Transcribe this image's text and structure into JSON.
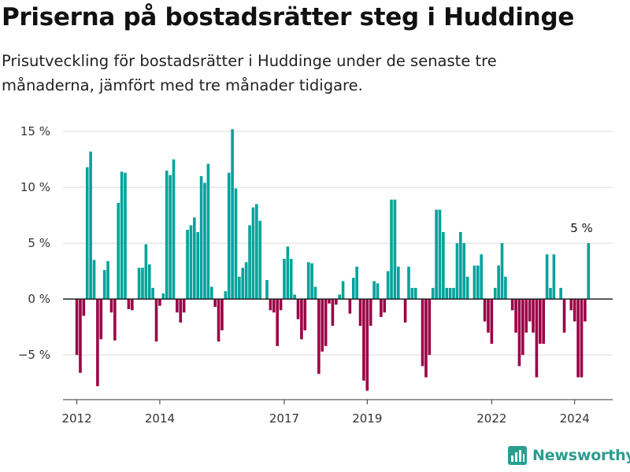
{
  "title": "Priserna på bostadsrätter steg i Huddinge",
  "subtitle": "Prisutveckling för bostadsrätter i Huddinge under de senaste tre månaderna, jämfört med tre månader tidigare.",
  "brand": "Newsworthy",
  "colors": {
    "positive": "#00a39b",
    "negative": "#9b0046",
    "grid": "#d9d9d9",
    "zero": "#222222"
  },
  "chart_data": {
    "type": "bar",
    "title": "Priserna på bostadsrätter steg i Huddinge",
    "xlabel": "",
    "ylabel": "",
    "ylim": [
      -9,
      15.5
    ],
    "xlim": [
      "2011-09",
      "2024-12"
    ],
    "grid": "horizontal",
    "y_ticks": [
      {
        "value": 15,
        "label": "15 %"
      },
      {
        "value": 10,
        "label": "10 %"
      },
      {
        "value": 5,
        "label": "5 %"
      },
      {
        "value": 0,
        "label": "0 %"
      },
      {
        "value": -5,
        "label": "−5 %"
      }
    ],
    "x_ticks": [
      {
        "value": "2012-01",
        "label": "2012"
      },
      {
        "value": "2014-01",
        "label": "2014"
      },
      {
        "value": "2017-01",
        "label": "2017"
      },
      {
        "value": "2019-01",
        "label": "2019"
      },
      {
        "value": "2022-01",
        "label": "2022"
      },
      {
        "value": "2024-01",
        "label": "2024"
      }
    ],
    "annotations": [
      {
        "x": "2024-03",
        "y": 5,
        "text": "5 %"
      }
    ],
    "start": "2012-01",
    "values": [
      -5.0,
      -6.6,
      -1.5,
      11.8,
      13.2,
      3.5,
      -7.8,
      -3.6,
      2.6,
      3.4,
      -1.2,
      -3.7,
      8.6,
      11.4,
      11.3,
      -0.9,
      -1.0,
      0.0,
      2.8,
      2.8,
      4.9,
      3.1,
      1.0,
      -3.8,
      -0.6,
      0.5,
      11.5,
      11.1,
      12.5,
      -1.2,
      -2.1,
      -1.2,
      6.2,
      6.6,
      7.3,
      6.0,
      11.0,
      10.4,
      12.1,
      1.1,
      -0.7,
      -3.8,
      -2.8,
      0.7,
      11.3,
      15.2,
      9.9,
      2.0,
      2.8,
      3.3,
      6.6,
      8.2,
      8.5,
      7.0,
      0.0,
      1.7,
      -1.0,
      -1.2,
      -4.2,
      -1.0,
      3.6,
      4.7,
      3.6,
      0.4,
      -1.8,
      -3.6,
      -2.8,
      3.3,
      3.2,
      1.1,
      -6.7,
      -4.7,
      -4.2,
      -0.4,
      -2.4,
      -0.5,
      0.4,
      1.6,
      0.0,
      -1.3,
      1.9,
      2.9,
      -2.4,
      -7.3,
      -8.2,
      -2.4,
      1.6,
      1.4,
      -1.6,
      -1.2,
      2.5,
      8.9,
      8.9,
      2.9,
      0.0,
      -2.1,
      2.9,
      1.0,
      1.0,
      0.0,
      -6.0,
      -7.0,
      -5.0,
      1.0,
      8.0,
      8.0,
      6.0,
      1.0,
      1.0,
      1.0,
      5.0,
      6.0,
      5.0,
      2.0,
      0.0,
      3.0,
      3.0,
      4.0,
      -2.0,
      -3.0,
      -4.0,
      1.0,
      3.0,
      5.0,
      2.0,
      0.0,
      -1.0,
      -3.0,
      -6.0,
      -5.0,
      -3.0,
      -2.0,
      -3.0,
      -7.0,
      -4.0,
      -4.0,
      4.0,
      1.0,
      4.0,
      0.0,
      1.0,
      -3.0,
      0.0,
      -1.0,
      -2.0,
      -7.0,
      -7.0,
      -2.0,
      5.0
    ]
  }
}
